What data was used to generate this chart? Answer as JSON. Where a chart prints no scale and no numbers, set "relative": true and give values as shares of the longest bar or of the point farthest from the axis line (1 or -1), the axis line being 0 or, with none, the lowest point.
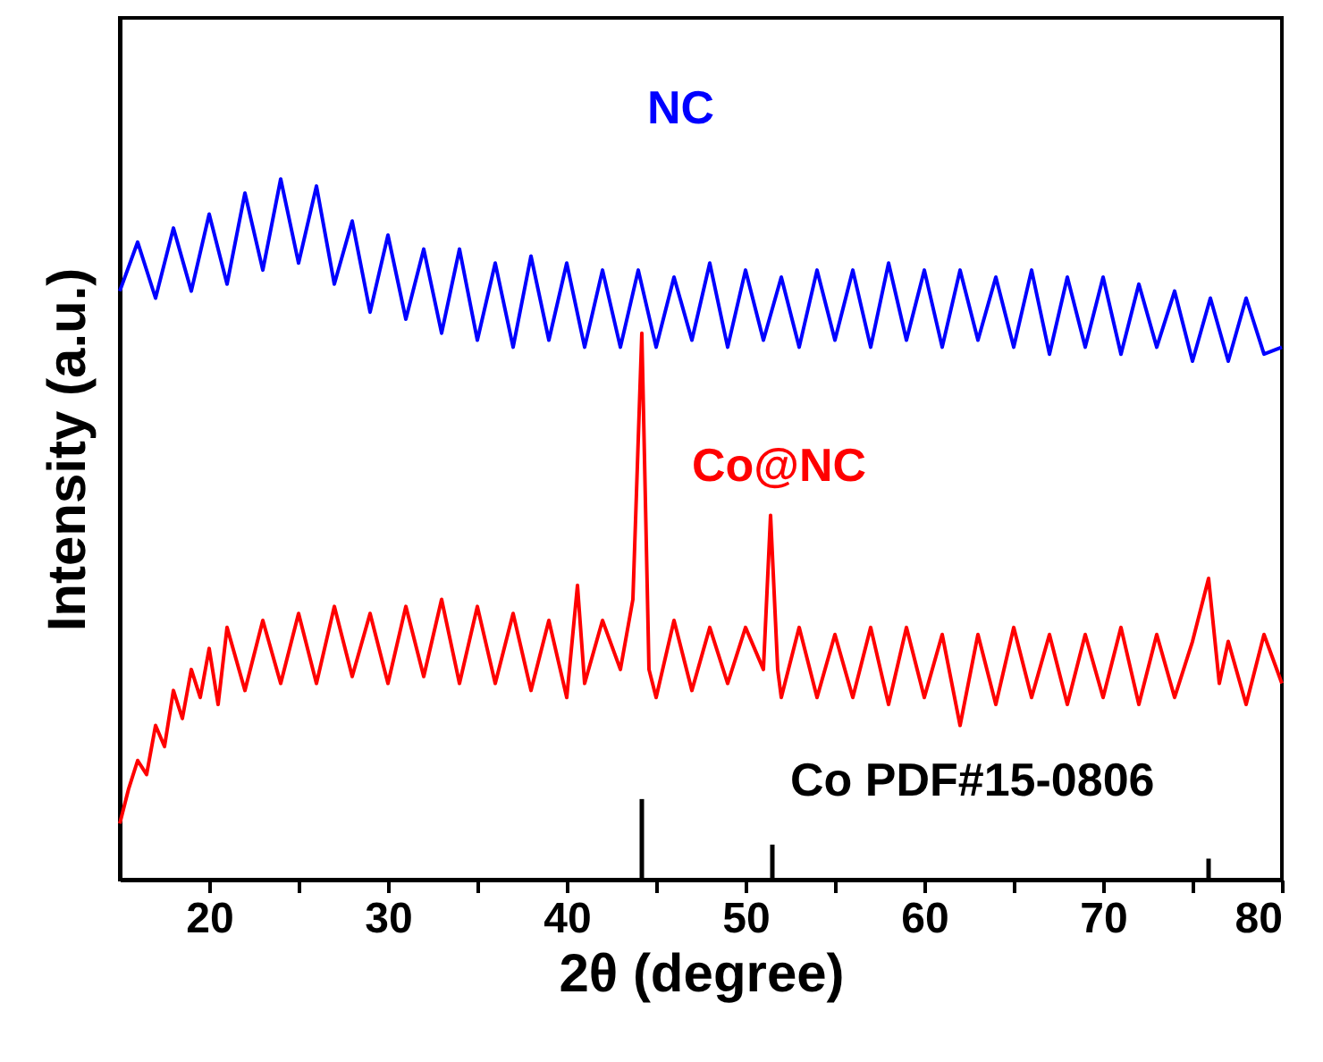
{
  "chart_data": {
    "type": "line",
    "relative": true,
    "xlabel": "2θ (degree)",
    "ylabel": "Intensity (a.u.)",
    "xlim": [
      15,
      80
    ],
    "xticks": [
      20,
      {
        "value": 25,
        "label": null
      },
      30,
      {
        "value": 35,
        "label": null
      },
      40,
      {
        "value": 45,
        "label": null
      },
      50,
      {
        "value": 55,
        "label": null
      },
      60,
      {
        "value": 65,
        "label": null
      },
      70,
      {
        "value": 75,
        "label": null
      },
      80
    ],
    "legend": false,
    "series": [
      {
        "name": "NC",
        "color": "#0000ff",
        "x": [
          15,
          16,
          17,
          18,
          19,
          20,
          21,
          22,
          23,
          24,
          25,
          26,
          27,
          28,
          29,
          30,
          31,
          32,
          33,
          34,
          35,
          36,
          37,
          38,
          39,
          40,
          41,
          42,
          43,
          44,
          45,
          46,
          47,
          48,
          49,
          50,
          51,
          52,
          53,
          54,
          55,
          56,
          57,
          58,
          59,
          60,
          61,
          62,
          63,
          64,
          65,
          66,
          67,
          68,
          69,
          70,
          71,
          72,
          73,
          74,
          75,
          76,
          77,
          78,
          79,
          80
        ],
        "values": [
          0.84,
          0.91,
          0.83,
          0.93,
          0.84,
          0.95,
          0.85,
          0.98,
          0.87,
          1.0,
          0.88,
          0.99,
          0.85,
          0.94,
          0.81,
          0.92,
          0.8,
          0.9,
          0.78,
          0.9,
          0.77,
          0.88,
          0.76,
          0.89,
          0.77,
          0.88,
          0.76,
          0.87,
          0.76,
          0.87,
          0.76,
          0.86,
          0.77,
          0.88,
          0.76,
          0.87,
          0.77,
          0.86,
          0.76,
          0.87,
          0.77,
          0.87,
          0.76,
          0.88,
          0.77,
          0.87,
          0.76,
          0.87,
          0.77,
          0.86,
          0.76,
          0.87,
          0.75,
          0.86,
          0.76,
          0.86,
          0.75,
          0.85,
          0.76,
          0.84,
          0.74,
          0.83,
          0.74,
          0.83,
          0.75,
          0.76
        ]
      },
      {
        "name": "Co@NC",
        "color": "#ff0000",
        "x": [
          15,
          15.5,
          16,
          16.5,
          17,
          17.5,
          18,
          18.5,
          19,
          19.5,
          20,
          20.5,
          21,
          22,
          23,
          24,
          25,
          26,
          27,
          28,
          29,
          30,
          31,
          32,
          33,
          34,
          35,
          36,
          37,
          38,
          39,
          40,
          40.6,
          41,
          42,
          43,
          43.7,
          44.2,
          44.6,
          45,
          46,
          47,
          48,
          49,
          50,
          51,
          51.4,
          51.8,
          52,
          53,
          54,
          55,
          56,
          57,
          58,
          59,
          60,
          61,
          62,
          63,
          64,
          65,
          66,
          67,
          68,
          69,
          70,
          71,
          72,
          73,
          74,
          75,
          75.9,
          76.5,
          77,
          78,
          79,
          80
        ],
        "values": [
          0.08,
          0.13,
          0.17,
          0.15,
          0.22,
          0.19,
          0.27,
          0.23,
          0.3,
          0.26,
          0.33,
          0.25,
          0.36,
          0.27,
          0.37,
          0.28,
          0.38,
          0.28,
          0.39,
          0.29,
          0.38,
          0.28,
          0.39,
          0.29,
          0.4,
          0.28,
          0.39,
          0.28,
          0.38,
          0.27,
          0.37,
          0.26,
          0.42,
          0.28,
          0.37,
          0.3,
          0.4,
          0.78,
          0.3,
          0.26,
          0.37,
          0.27,
          0.36,
          0.28,
          0.36,
          0.3,
          0.52,
          0.3,
          0.26,
          0.36,
          0.26,
          0.35,
          0.26,
          0.36,
          0.25,
          0.36,
          0.26,
          0.35,
          0.22,
          0.35,
          0.25,
          0.36,
          0.26,
          0.35,
          0.25,
          0.35,
          0.26,
          0.36,
          0.25,
          0.35,
          0.26,
          0.34,
          0.43,
          0.28,
          0.34,
          0.25,
          0.35,
          0.28
        ]
      },
      {
        "name": "Co PDF#15-0806",
        "type": "bar",
        "color": "#000000",
        "x": [
          44.2,
          51.5,
          75.9
        ],
        "values": [
          0.115,
          0.05,
          0.03
        ]
      }
    ]
  }
}
